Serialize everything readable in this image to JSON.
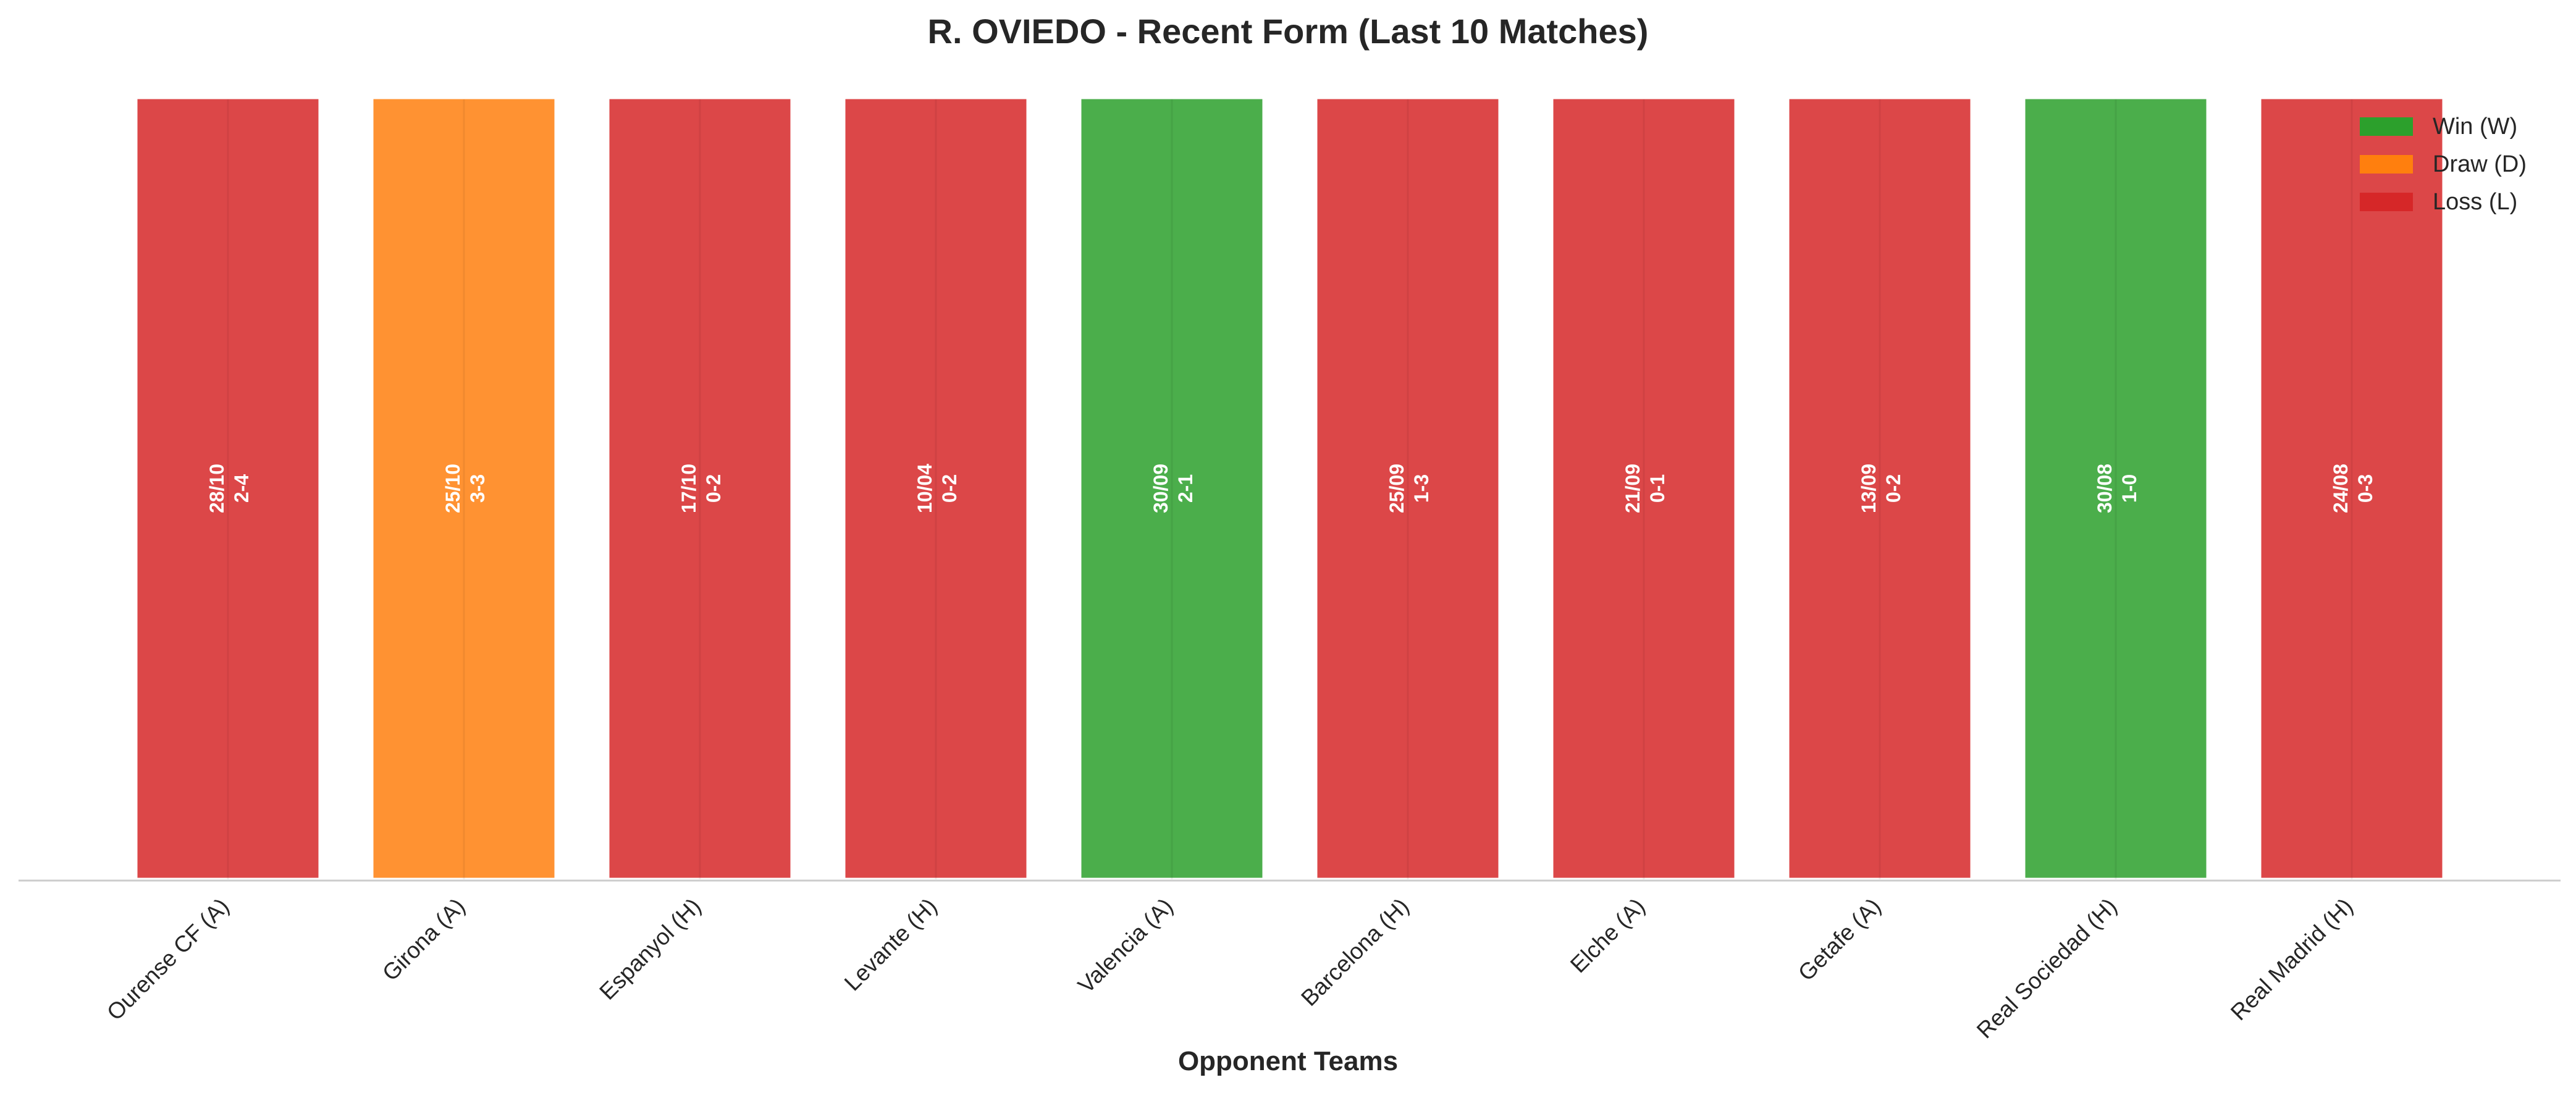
{
  "chart_data": {
    "type": "bar",
    "title": "R. OVIEDO - Recent Form (Last 10 Matches)",
    "xlabel": "Opponent Teams",
    "ylabel": "",
    "grid": false,
    "legend_position": "top-right",
    "categories": [
      "Ourense CF (A)",
      "Girona (A)",
      "Espanyol (H)",
      "Levante (H)",
      "Valencia (A)",
      "Barcelona (H)",
      "Elche (A)",
      "Getafe (A)",
      "Real Sociedad (H)",
      "Real Madrid (H)"
    ],
    "values": [
      1,
      1,
      1,
      1,
      1,
      1,
      1,
      1,
      1,
      1
    ],
    "results": [
      "L",
      "D",
      "L",
      "L",
      "W",
      "L",
      "L",
      "L",
      "W",
      "L"
    ],
    "dates": [
      "28/10",
      "25/10",
      "17/10",
      "10/04",
      "30/09",
      "25/09",
      "21/09",
      "13/09",
      "30/08",
      "24/08"
    ],
    "scores": [
      "2-4",
      "3-3",
      "0-2",
      "0-2",
      "2-1",
      "1-3",
      "0-1",
      "0-2",
      "1-0",
      "0-3"
    ],
    "ylim": [
      0,
      1
    ],
    "legend": [
      {
        "key": "W",
        "label": "Win (W)",
        "color": "#2ca02c"
      },
      {
        "key": "D",
        "label": "Draw (D)",
        "color": "#ff7f0e"
      },
      {
        "key": "L",
        "label": "Loss (L)",
        "color": "#d62728"
      }
    ]
  }
}
